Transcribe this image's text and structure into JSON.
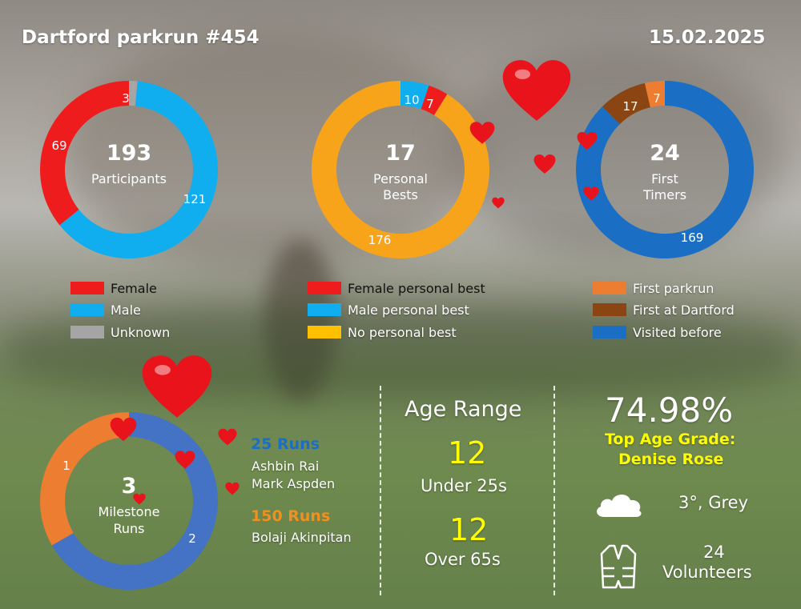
{
  "header": {
    "title": "Dartford parkrun #454",
    "date": "15.02.2025"
  },
  "chart_data": [
    {
      "type": "pie",
      "variant": "donut",
      "center_value": "193",
      "center_label": [
        "Participants"
      ],
      "slices": [
        {
          "label": "Female",
          "value": 69,
          "color": "#ee1c1c"
        },
        {
          "label": "Unknown",
          "value": 3,
          "color": "#a5a5a5"
        },
        {
          "label": "Male",
          "value": 121,
          "color": "#10aeee"
        }
      ],
      "legend": [
        {
          "label": "Female",
          "color": "#ee1c1c"
        },
        {
          "label": "Male",
          "color": "#10aeee"
        },
        {
          "label": "Unknown",
          "color": "#a5a5a5"
        }
      ]
    },
    {
      "type": "pie",
      "variant": "donut",
      "center_value": "17",
      "center_label": [
        "Personal",
        "Bests"
      ],
      "slices": [
        {
          "label": "No personal best",
          "value": 176,
          "color": "#f8a41b"
        },
        {
          "label": "Male personal best",
          "value": 10,
          "color": "#10aeee"
        },
        {
          "label": "Female personal best",
          "value": 7,
          "color": "#ee1c1c"
        }
      ],
      "legend": [
        {
          "label": "Female personal best",
          "color": "#ee1c1c"
        },
        {
          "label": "Male personal best",
          "color": "#10aeee"
        },
        {
          "label": "No personal best",
          "color": "#ffc000"
        }
      ]
    },
    {
      "type": "pie",
      "variant": "donut",
      "center_value": "24",
      "center_label": [
        "First",
        "Timers"
      ],
      "slices": [
        {
          "label": "Visited before",
          "value": 169,
          "color": "#1a6fc4"
        },
        {
          "label": "First at Dartford",
          "value": 17,
          "color": "#8b4513"
        },
        {
          "label": "First parkrun",
          "value": 7,
          "color": "#ed7d31"
        }
      ],
      "legend": [
        {
          "label": "First parkrun",
          "color": "#ed7d31"
        },
        {
          "label": "First at Dartford",
          "color": "#8b4513"
        },
        {
          "label": "Visited before",
          "color": "#1a6fc4"
        }
      ]
    },
    {
      "type": "pie",
      "variant": "donut",
      "center_value": "3",
      "center_label": [
        "Milestone",
        "Runs"
      ],
      "slices": [
        {
          "label": "150 Runs",
          "value": 1,
          "color": "#ed7d31"
        },
        {
          "label": "25 Runs",
          "value": 2,
          "color": "#4472c4"
        }
      ],
      "legend": []
    }
  ],
  "milestones": {
    "groups": [
      {
        "title": "25 Runs",
        "color": "#1a6fc4",
        "names": [
          "Ashbin Rai",
          "Mark Aspden"
        ]
      },
      {
        "title": "150 Runs",
        "color": "#f0901e",
        "names": [
          "Bolaji Akinpitan"
        ]
      }
    ]
  },
  "age_range": {
    "title": "Age Range",
    "under_value": "12",
    "under_label": "Under 25s",
    "over_value": "12",
    "over_label": "Over 65s",
    "accent": "#ffff00"
  },
  "top_grade": {
    "value": "74.98%",
    "label_line1": "Top Age Grade:",
    "label_line2": "Denise Rose",
    "accent": "#ffff00"
  },
  "weather": {
    "icon": "cloud-icon",
    "text": "3°, Grey"
  },
  "volunteers": {
    "icon": "hi-vis-vest-icon",
    "count": "24",
    "label": "Volunteers"
  }
}
